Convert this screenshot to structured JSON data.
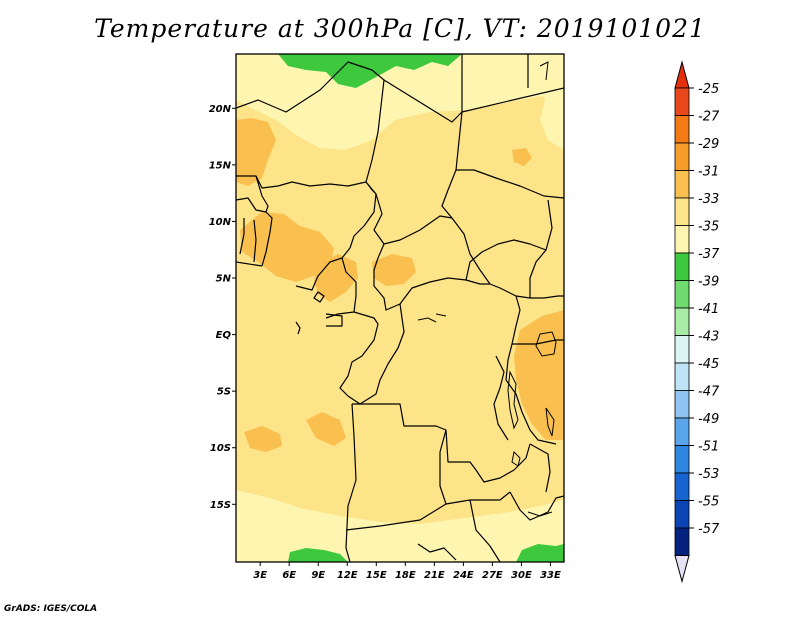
{
  "title": "Temperature at 300hPa [C], VT: 2019101021",
  "credit": "GrADS: IGES/COLA",
  "map": {
    "lat_labels": [
      {
        "text": "20N",
        "lat": 20
      },
      {
        "text": "15N",
        "lat": 15
      },
      {
        "text": "10N",
        "lat": 10
      },
      {
        "text": "5N",
        "lat": 5
      },
      {
        "text": "EQ",
        "lat": 0
      },
      {
        "text": "5S",
        "lat": -5
      },
      {
        "text": "10S",
        "lat": -10
      },
      {
        "text": "15S",
        "lat": -15
      }
    ],
    "lon_labels": [
      {
        "text": "3E",
        "lon": 3
      },
      {
        "text": "6E",
        "lon": 6
      },
      {
        "text": "9E",
        "lon": 9
      },
      {
        "text": "12E",
        "lon": 12
      },
      {
        "text": "15E",
        "lon": 15
      },
      {
        "text": "18E",
        "lon": 18
      },
      {
        "text": "21E",
        "lon": 21
      },
      {
        "text": "24E",
        "lon": 24
      },
      {
        "text": "27E",
        "lon": 27
      },
      {
        "text": "30E",
        "lon": 30
      },
      {
        "text": "33E",
        "lon": 33
      }
    ],
    "colors": {
      "t35_33": "#fef6b0",
      "t33_31": "#fde489",
      "t31_29": "#f9bf4f",
      "t37_35": "#3dc83d",
      "border": "#000000"
    }
  },
  "colorbar": {
    "levels": [
      "-25",
      "-27",
      "-29",
      "-31",
      "-33",
      "-35",
      "-37",
      "-39",
      "-41",
      "-43",
      "-45",
      "-47",
      "-49",
      "-51",
      "-53",
      "-55",
      "-57"
    ],
    "colors": [
      "#e8481b",
      "#f47a16",
      "#f79d2b",
      "#f9bf4f",
      "#fde489",
      "#fef6b0",
      "#3dc83d",
      "#6fdb6f",
      "#a8eca8",
      "#dbf6f2",
      "#bfe3f7",
      "#8fc4f0",
      "#5ba6ea",
      "#2f86e0",
      "#1763cf",
      "#0a45b3",
      "#04227e"
    ],
    "top_arrow_color": "#e5300e",
    "bottom_arrow_color": "#e6e2f7"
  }
}
